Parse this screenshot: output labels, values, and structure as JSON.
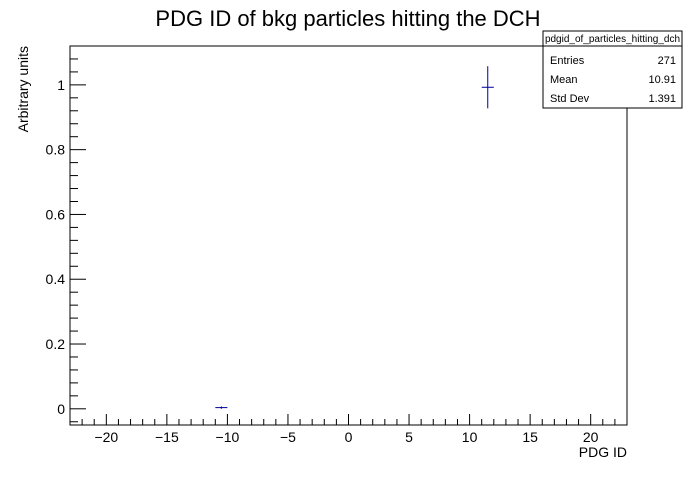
{
  "chart_data": {
    "type": "scatter",
    "title": "PDG ID of bkg particles hitting the DCH",
    "xlabel": "PDG ID",
    "ylabel": "Arbitrary units",
    "xlim": [
      -23,
      23
    ],
    "ylim": [
      -0.05,
      1.12
    ],
    "x_ticks": [
      -20,
      -15,
      -10,
      -5,
      0,
      5,
      10,
      15,
      20
    ],
    "x_tick_labels": [
      "−20",
      "−15",
      "−10",
      "−5",
      "0",
      "5",
      "10",
      "15",
      "20"
    ],
    "y_ticks": [
      0,
      0.2,
      0.4,
      0.6,
      0.8,
      1
    ],
    "y_tick_labels": [
      "0",
      "0.2",
      "0.4",
      "0.6",
      "0.8",
      "1"
    ],
    "grid": false,
    "points": [
      {
        "x": -10.5,
        "y": 0.0037,
        "xerr": 0.5,
        "yerr": 0.0037
      },
      {
        "x": 11.5,
        "y": 0.9926,
        "xerr": 0.5,
        "yerr": 0.065
      }
    ],
    "colors": {
      "marker": "#000099",
      "frame": "#000000"
    },
    "stats_box": {
      "title": "pdgid_of_particles_hitting_dch",
      "rows": [
        {
          "label": "Entries",
          "value": "271"
        },
        {
          "label": "Mean",
          "value": "10.91"
        },
        {
          "label": "Std Dev",
          "value": "1.391"
        }
      ]
    }
  }
}
